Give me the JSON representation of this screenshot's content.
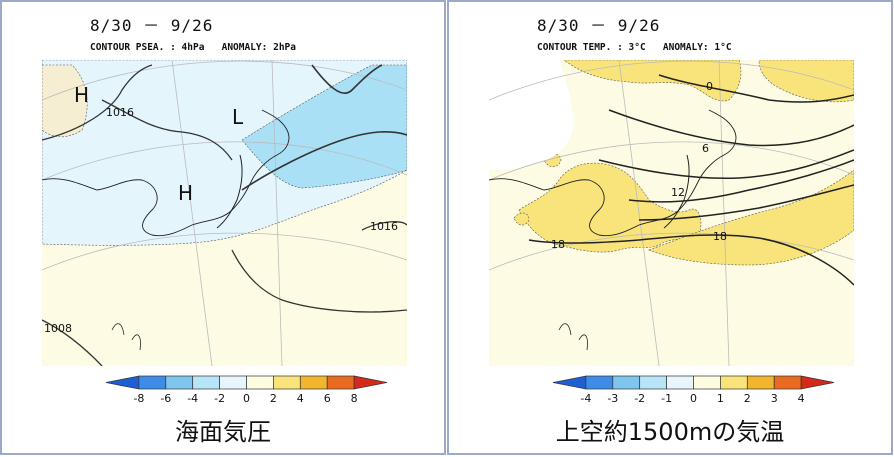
{
  "panels": [
    {
      "id": "sea-level-pressure",
      "date_range": "8/30 － 9/26",
      "contour_label": "CONTOUR PSEA. :",
      "contour_value": "4hPa",
      "anomaly_label": "ANOMALY:",
      "anomaly_value": "2hPa",
      "caption": "海面気圧",
      "pressure_centers": [
        {
          "label": "H"
        },
        {
          "label": "L"
        },
        {
          "label": "H"
        }
      ],
      "contour_labels": [
        "1016",
        "1016",
        "1008"
      ],
      "colorbar_ticks": [
        "-8",
        "-6",
        "-4",
        "-2",
        "0",
        "2",
        "4",
        "6",
        "8"
      ],
      "colorbar_colors": [
        "#1f5fd6",
        "#3d8de8",
        "#7ec6ee",
        "#b8e4f7",
        "#e6f6fc",
        "#fdfbe0",
        "#f8e47a",
        "#f3b42e",
        "#ea6a1f",
        "#d42a1c"
      ]
    },
    {
      "id": "temperature-850hPa",
      "date_range": "8/30 － 9/26",
      "contour_label": "CONTOUR TEMP. :",
      "contour_value": "3°C",
      "anomaly_label": "ANOMALY:",
      "anomaly_value": "1°C",
      "caption": "上空約1500mの気温",
      "contour_labels": [
        "0",
        "6",
        "12",
        "18",
        "18"
      ],
      "colorbar_ticks": [
        "-4",
        "-3",
        "-2",
        "-1",
        "0",
        "1",
        "2",
        "3",
        "4"
      ],
      "colorbar_colors": [
        "#1f5fd6",
        "#3d8de8",
        "#7ec6ee",
        "#b8e4f7",
        "#e6f6fc",
        "#fdfbe0",
        "#f8e47a",
        "#f3b42e",
        "#ea6a1f",
        "#d42a1c"
      ]
    }
  ]
}
